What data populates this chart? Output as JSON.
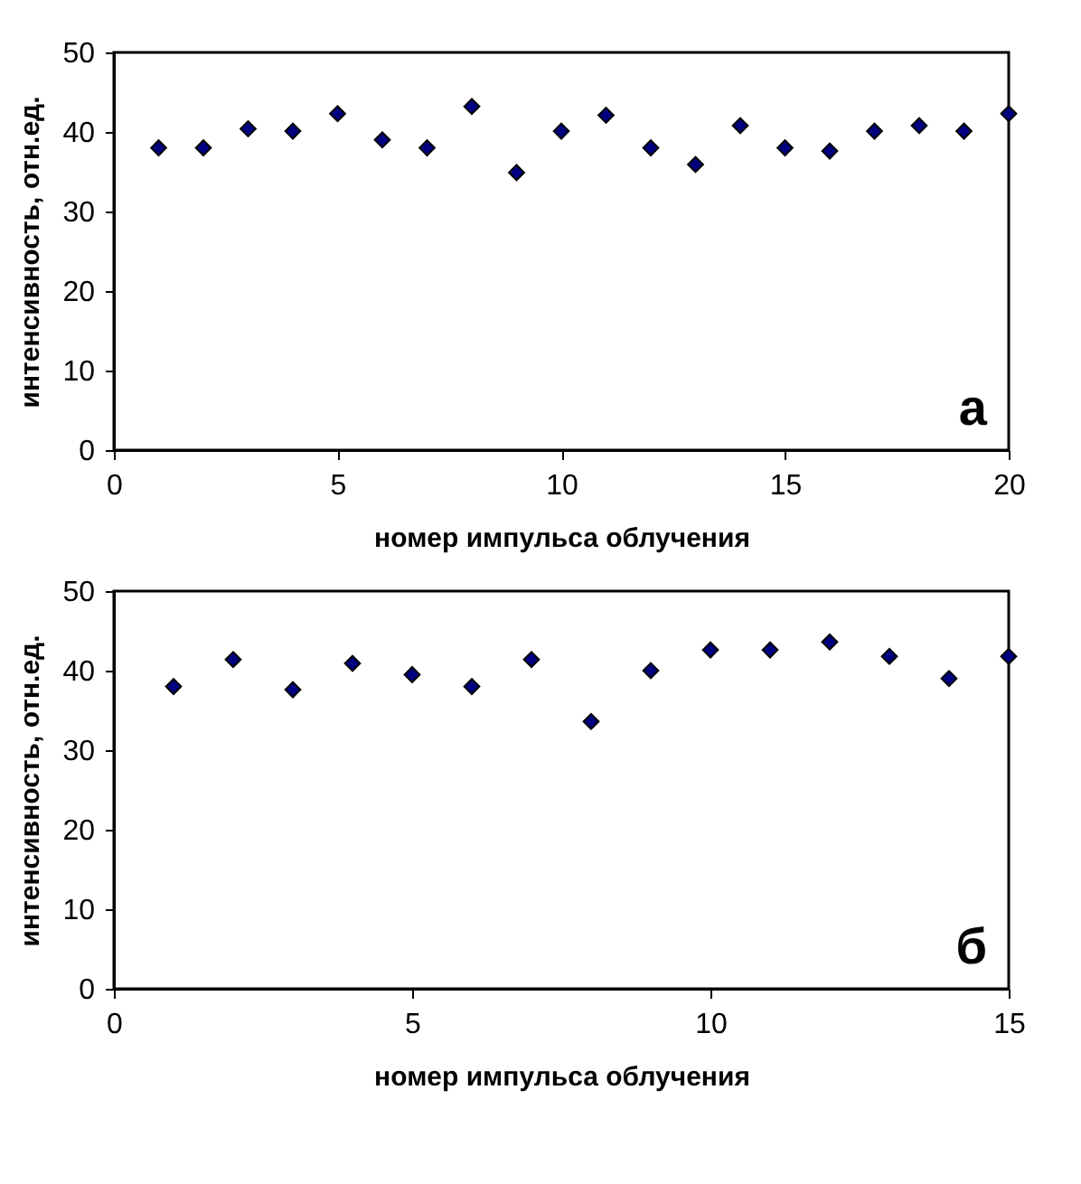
{
  "chart_data": [
    {
      "type": "scatter",
      "xlabel": "номер импульса облучения",
      "ylabel": "интенсивность, отн.ед.",
      "annotations": [
        "а"
      ],
      "marker": "diamond",
      "grid": false,
      "xlim": [
        0,
        20
      ],
      "xticks": [
        0,
        5,
        10,
        15,
        20
      ],
      "ylim": [
        0,
        50
      ],
      "yticks": [
        0,
        10,
        20,
        30,
        40,
        50
      ],
      "x": [
        1,
        2,
        3,
        4,
        5,
        6,
        7,
        8,
        9,
        10,
        11,
        12,
        13,
        14,
        15,
        16,
        17,
        18,
        19,
        20
      ],
      "series": [
        {
          "color": "#000080",
          "values": [
            38,
            38,
            40.4,
            40.1,
            42.3,
            39,
            38,
            43.2,
            34.9,
            40.1,
            42.1,
            38,
            35.9,
            40.8,
            38,
            37.6,
            40.1,
            40.8,
            40.1,
            42.3
          ]
        }
      ]
    },
    {
      "type": "scatter",
      "xlabel": "номер импульса облучения",
      "ylabel": "интенсивность, отн.ед.",
      "annotations": [
        "б"
      ],
      "marker": "diamond",
      "grid": false,
      "xlim": [
        0,
        15
      ],
      "xticks": [
        0,
        5,
        10,
        15
      ],
      "ylim": [
        0,
        50
      ],
      "yticks": [
        0,
        10,
        20,
        30,
        40,
        50
      ],
      "x": [
        1,
        2,
        3,
        4,
        5,
        6,
        7,
        8,
        9,
        10,
        11,
        12,
        13,
        14,
        15
      ],
      "series": [
        {
          "color": "#000080",
          "values": [
            38,
            41.4,
            37.6,
            40.9,
            39.5,
            38,
            41.4,
            33.6,
            40,
            42.6,
            42.6,
            43.6,
            41.8,
            39,
            41.8
          ]
        }
      ]
    }
  ]
}
